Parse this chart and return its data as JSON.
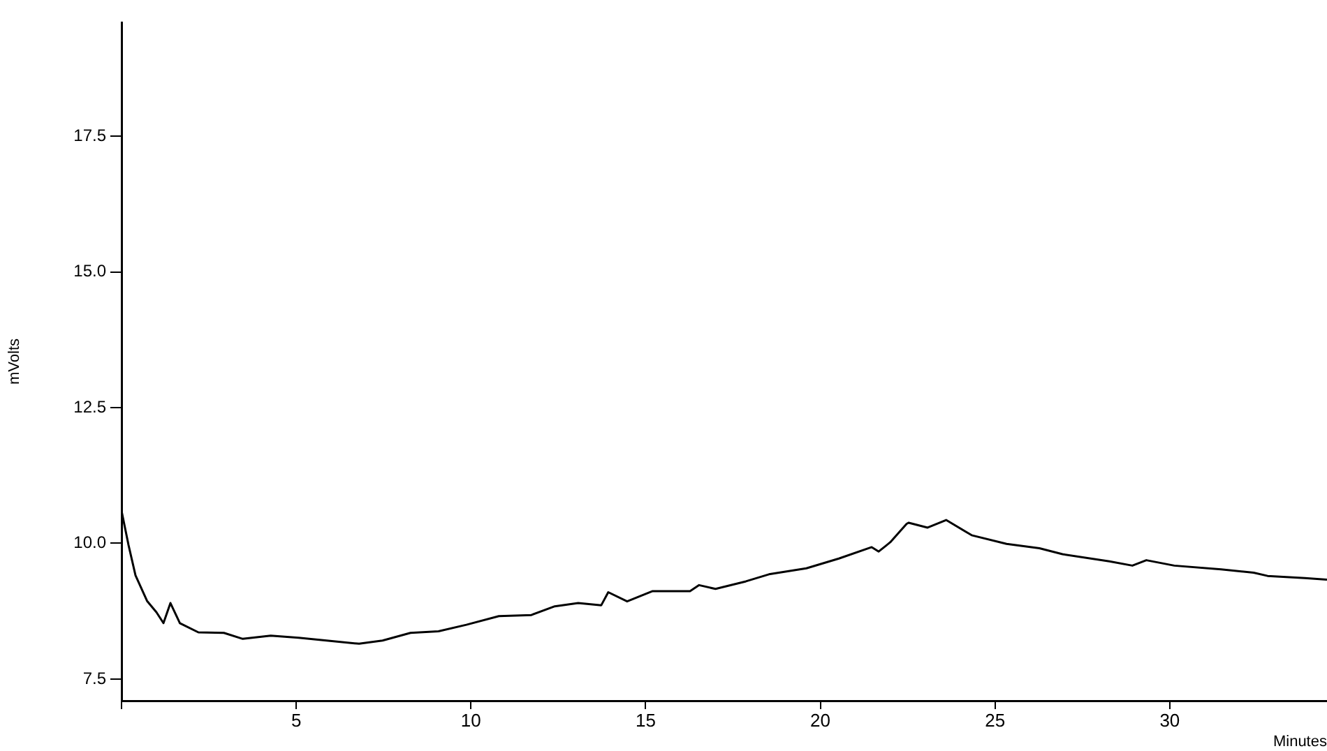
{
  "chart_data": {
    "type": "line",
    "xlabel": "Minutes",
    "ylabel": "mVolts",
    "grid": false,
    "legend": false,
    "marker": "none",
    "line_style": "solid",
    "xlim": [
      0,
      34.5
    ],
    "xticks": [
      {
        "value": 0,
        "label": null
      },
      5,
      10,
      15,
      20,
      25,
      30
    ],
    "ylim": [
      7.1,
      19.6
    ],
    "yticks": [
      {
        "value": 7.5,
        "label": "7.5"
      },
      {
        "value": 10,
        "label": "10.0"
      },
      {
        "value": 12.5,
        "label": "12.5"
      },
      {
        "value": 15,
        "label": "15.0"
      },
      {
        "value": 17.5,
        "label": "17.5"
      }
    ],
    "x": [
      0,
      0.2,
      0.4,
      0.73,
      1.0,
      1.2,
      1.4,
      1.67,
      2.2,
      2.93,
      3.47,
      4.27,
      5.07,
      5.87,
      6.8,
      7.47,
      8.27,
      9.07,
      9.87,
      10.8,
      11.73,
      12.4,
      13.07,
      13.73,
      13.93,
      14.47,
      15.2,
      16.27,
      16.53,
      17.0,
      17.87,
      18.53,
      19.6,
      20.53,
      21.47,
      21.67,
      22.0,
      22.47,
      22.53,
      23.07,
      23.6,
      24.33,
      25.33,
      26.27,
      26.93,
      28.27,
      28.93,
      29.33,
      30.13,
      31.47,
      32.4,
      32.8,
      33.87,
      34.5
    ],
    "series": [
      {
        "color": "#000000",
        "values": [
          10.6,
          9.97,
          9.41,
          8.94,
          8.73,
          8.53,
          8.9,
          8.53,
          8.36,
          8.35,
          8.24,
          8.3,
          8.26,
          8.21,
          8.15,
          8.21,
          8.35,
          8.38,
          8.5,
          8.66,
          8.68,
          8.84,
          8.9,
          8.86,
          9.1,
          8.93,
          9.12,
          9.12,
          9.23,
          9.16,
          9.3,
          9.43,
          9.54,
          9.72,
          9.93,
          9.85,
          10.02,
          10.36,
          10.38,
          10.29,
          10.43,
          10.15,
          9.99,
          9.91,
          9.8,
          9.67,
          9.59,
          9.69,
          9.59,
          9.52,
          9.46,
          9.4,
          9.36,
          9.33
        ]
      }
    ]
  }
}
